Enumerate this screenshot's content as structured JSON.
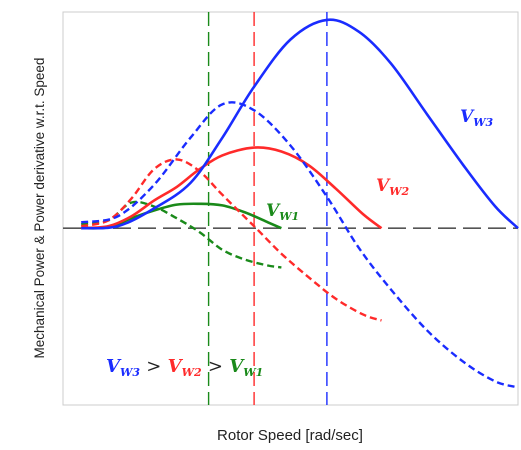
{
  "chart_data": {
    "type": "line",
    "xlabel": "Rotor Speed [rad/sec]",
    "ylabel": "Mechanical Power & Power derivative w.r.t. Speed",
    "xlim": [
      0,
      10
    ],
    "ylim": [
      -4.5,
      5.5
    ],
    "grid": false,
    "zero_line": {
      "y": 0,
      "style": "dashed",
      "color": "#555555"
    },
    "colors": {
      "VW1": "#1a8a1a",
      "VW2": "#ff2a2a",
      "VW3": "#1a2cff"
    },
    "series": [
      {
        "name": "V_W1",
        "kind": "power",
        "style": "solid",
        "color_key": "VW1",
        "points": [
          [
            0.4,
            0.0
          ],
          [
            1.0,
            0.02
          ],
          [
            1.5,
            0.25
          ],
          [
            2.0,
            0.45
          ],
          [
            2.5,
            0.6
          ],
          [
            3.0,
            0.62
          ],
          [
            3.5,
            0.58
          ],
          [
            4.0,
            0.4
          ],
          [
            4.5,
            0.15
          ],
          [
            4.8,
            0.0
          ]
        ]
      },
      {
        "name": "",
        "kind": "derivative",
        "style": "dashed",
        "color_key": "VW1",
        "points": [
          [
            0.4,
            0.1
          ],
          [
            1.0,
            0.2
          ],
          [
            1.5,
            0.65
          ],
          [
            2.0,
            0.55
          ],
          [
            2.5,
            0.25
          ],
          [
            3.0,
            -0.1
          ],
          [
            3.5,
            -0.55
          ],
          [
            4.0,
            -0.8
          ],
          [
            4.5,
            -0.95
          ],
          [
            4.8,
            -1.0
          ]
        ]
      },
      {
        "name": "V_W2",
        "kind": "power",
        "style": "solid",
        "color_key": "VW2",
        "points": [
          [
            0.4,
            0.0
          ],
          [
            1.0,
            0.05
          ],
          [
            1.5,
            0.3
          ],
          [
            2.0,
            0.7
          ],
          [
            2.5,
            1.05
          ],
          [
            3.0,
            1.5
          ],
          [
            3.5,
            1.85
          ],
          [
            4.2,
            2.05
          ],
          [
            4.8,
            1.95
          ],
          [
            5.4,
            1.6
          ],
          [
            6.0,
            1.0
          ],
          [
            6.6,
            0.35
          ],
          [
            7.0,
            0.0
          ]
        ]
      },
      {
        "name": "",
        "kind": "derivative",
        "style": "dashed",
        "color_key": "VW2",
        "points": [
          [
            0.4,
            0.05
          ],
          [
            1.0,
            0.2
          ],
          [
            1.5,
            0.75
          ],
          [
            2.0,
            1.5
          ],
          [
            2.5,
            1.75
          ],
          [
            3.0,
            1.45
          ],
          [
            3.5,
            0.85
          ],
          [
            4.2,
            0.05
          ],
          [
            4.8,
            -0.65
          ],
          [
            5.4,
            -1.25
          ],
          [
            6.0,
            -1.8
          ],
          [
            6.6,
            -2.2
          ],
          [
            7.0,
            -2.35
          ]
        ]
      },
      {
        "name": "V_W3",
        "kind": "power",
        "style": "solid",
        "color_key": "VW3",
        "points": [
          [
            0.4,
            0.0
          ],
          [
            1.2,
            0.05
          ],
          [
            2.0,
            0.5
          ],
          [
            2.8,
            1.15
          ],
          [
            3.5,
            2.3
          ],
          [
            4.2,
            3.6
          ],
          [
            5.0,
            4.8
          ],
          [
            5.8,
            5.3
          ],
          [
            6.5,
            5.0
          ],
          [
            7.2,
            4.2
          ],
          [
            8.0,
            2.9
          ],
          [
            8.8,
            1.6
          ],
          [
            9.5,
            0.55
          ],
          [
            10.0,
            0.0
          ]
        ]
      },
      {
        "name": "",
        "kind": "derivative",
        "style": "dashed",
        "color_key": "VW3",
        "points": [
          [
            0.4,
            0.15
          ],
          [
            1.2,
            0.3
          ],
          [
            2.0,
            1.1
          ],
          [
            2.8,
            2.3
          ],
          [
            3.5,
            3.15
          ],
          [
            4.2,
            3.0
          ],
          [
            5.0,
            2.1
          ],
          [
            5.8,
            0.8
          ],
          [
            6.5,
            -0.5
          ],
          [
            7.2,
            -1.55
          ],
          [
            8.0,
            -2.6
          ],
          [
            8.8,
            -3.4
          ],
          [
            9.5,
            -3.9
          ],
          [
            10.0,
            -4.05
          ]
        ]
      }
    ],
    "vlines": [
      {
        "x": 3.2,
        "color_key": "VW1",
        "style": "dashed"
      },
      {
        "x": 4.2,
        "color_key": "VW2",
        "style": "dashed"
      },
      {
        "x": 5.8,
        "color_key": "VW3",
        "style": "dashed"
      }
    ],
    "annotations": {
      "vw1": {
        "base": "V",
        "sub": "W1"
      },
      "vw2": {
        "base": "V",
        "sub": "W2"
      },
      "vw3": {
        "base": "V",
        "sub": "W3"
      },
      "gt": ">"
    }
  }
}
